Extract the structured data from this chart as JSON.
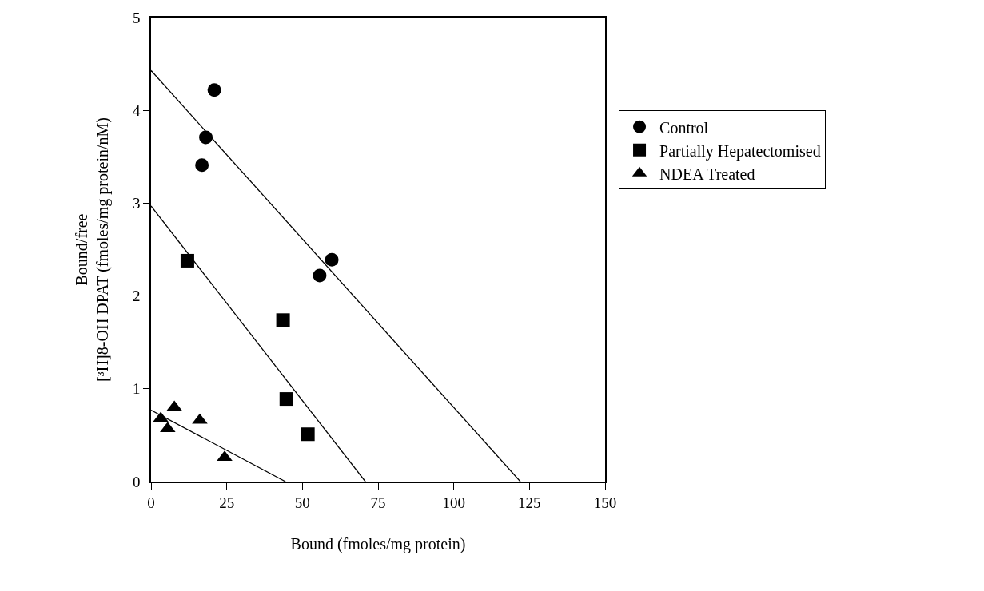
{
  "chart_data": {
    "type": "scatter",
    "xlabel": "Bound (fmoles/mg protein)",
    "ylabel": "Bound/free\n[³H]8-OH DPAT (fmoles/mg protein/nM)",
    "xlim": [
      0,
      150
    ],
    "xticks": [
      0,
      25,
      50,
      75,
      100,
      125,
      150
    ],
    "ylim": [
      0,
      5
    ],
    "yticks": [
      0,
      1,
      2,
      3,
      4,
      5
    ],
    "legend": "right",
    "series": [
      {
        "name": "Control",
        "color": "#000000",
        "marker": "circle",
        "x": [
          20.9,
          18.1,
          16.8,
          59.7,
          55.7
        ],
        "values": [
          4.22,
          3.71,
          3.41,
          2.39,
          2.22
        ]
      },
      {
        "name": "Partially Hepatectomised",
        "color": "#000000",
        "marker": "square",
        "x": [
          12.0,
          43.6,
          44.7,
          51.8
        ],
        "values": [
          2.38,
          1.74,
          0.89,
          0.51
        ]
      },
      {
        "name": "NDEA Treated",
        "color": "#000000",
        "marker": "triangle",
        "x": [
          7.7,
          3.2,
          5.5,
          16.1,
          24.3
        ],
        "values": [
          0.8,
          0.68,
          0.57,
          0.66,
          0.26
        ]
      },
      {
        "type": "line",
        "color": "#000000",
        "marker": "none",
        "x": [
          0,
          122.0
        ],
        "values": [
          4.43,
          0
        ]
      },
      {
        "type": "line",
        "color": "#000000",
        "marker": "none",
        "x": [
          0,
          70.8
        ],
        "values": [
          2.97,
          0
        ]
      },
      {
        "type": "line",
        "color": "#000000",
        "marker": "none",
        "x": [
          0,
          44.4
        ],
        "values": [
          0.77,
          0
        ]
      }
    ]
  }
}
